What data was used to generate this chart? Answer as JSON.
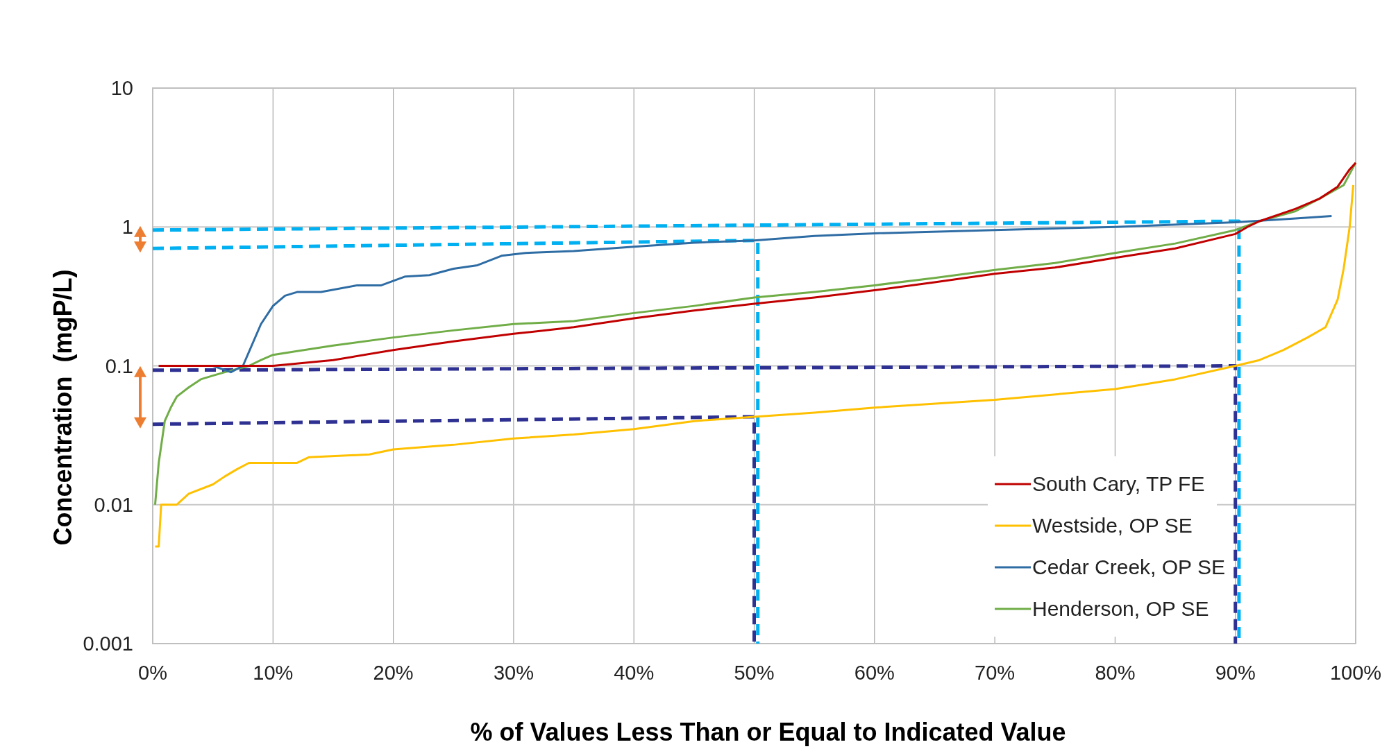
{
  "chart_data": {
    "type": "line",
    "xlabel": "% of Values Less Than or Equal to Indicated Value",
    "ylabel": "Concentration  (mgP/L)",
    "log": "y",
    "grid": true,
    "legend": "bottom right",
    "line_style": "solid",
    "marker": "none",
    "xlim": [
      0,
      100
    ],
    "xticks": [
      {
        "value": 0,
        "label": "0%"
      },
      {
        "value": 10,
        "label": "10%"
      },
      {
        "value": 20,
        "label": "20%"
      },
      {
        "value": 30,
        "label": "30%"
      },
      {
        "value": 40,
        "label": "40%"
      },
      {
        "value": 50,
        "label": "50%"
      },
      {
        "value": 60,
        "label": "60%"
      },
      {
        "value": 70,
        "label": "70%"
      },
      {
        "value": 80,
        "label": "80%"
      },
      {
        "value": 90,
        "label": "90%"
      },
      {
        "value": 100,
        "label": "100%"
      }
    ],
    "ylim": [
      0.001,
      10
    ],
    "yticks": [
      0.001,
      0.01,
      0.1,
      1,
      10
    ],
    "series": [
      {
        "name": "South Cary, TP FE",
        "color": "#c00000",
        "x": [
          0.5,
          5,
          10,
          15,
          20,
          25,
          30,
          35,
          40,
          45,
          50,
          55,
          60,
          65,
          70,
          75,
          80,
          85,
          90,
          91,
          92,
          95,
          97,
          98.5,
          99.5,
          100
        ],
        "values": [
          0.1,
          0.1,
          0.1,
          0.11,
          0.13,
          0.15,
          0.17,
          0.19,
          0.22,
          0.25,
          0.28,
          0.31,
          0.35,
          0.4,
          0.46,
          0.51,
          0.6,
          0.7,
          0.89,
          1,
          1.1,
          1.35,
          1.6,
          1.95,
          2.6,
          2.9
        ]
      },
      {
        "name": "Westside, OP SE",
        "color": "#ffc000",
        "x": [
          0.2,
          0.5,
          0.7,
          2,
          3,
          5,
          6,
          7,
          8,
          12,
          13,
          18,
          20,
          25,
          30,
          35,
          40,
          45,
          50,
          55,
          60,
          70,
          80,
          85,
          90,
          92,
          94,
          96,
          97.5,
          98.5,
          99,
          99.5,
          99.8
        ],
        "values": [
          0.005,
          0.005,
          0.01,
          0.01,
          0.012,
          0.014,
          0.016,
          0.018,
          0.02,
          0.02,
          0.022,
          0.023,
          0.025,
          0.027,
          0.03,
          0.032,
          0.035,
          0.04,
          0.043,
          0.046,
          0.05,
          0.057,
          0.068,
          0.08,
          0.1,
          0.11,
          0.13,
          0.16,
          0.19,
          0.3,
          0.5,
          1,
          2
        ]
      },
      {
        "name": "Cedar Creek, OP SE",
        "color": "#2e6ca4",
        "x": [
          0.5,
          5,
          6.5,
          7.5,
          9,
          10,
          11,
          12,
          14,
          17,
          19,
          21,
          23,
          25,
          27,
          29,
          31,
          35,
          40,
          45,
          50,
          55,
          60,
          70,
          80,
          90,
          95,
          98
        ],
        "values": [
          0.1,
          0.1,
          0.09,
          0.1,
          0.2,
          0.27,
          0.32,
          0.34,
          0.34,
          0.38,
          0.38,
          0.44,
          0.45,
          0.5,
          0.53,
          0.62,
          0.65,
          0.67,
          0.72,
          0.77,
          0.8,
          0.86,
          0.9,
          0.95,
          1,
          1.08,
          1.15,
          1.2
        ]
      },
      {
        "name": "Henderson, OP SE",
        "color": "#70ad47",
        "x": [
          0.2,
          0.5,
          1,
          1.5,
          2,
          3,
          4,
          5,
          6,
          8,
          9,
          10,
          15,
          20,
          25,
          30,
          35,
          40,
          45,
          50,
          55,
          60,
          65,
          70,
          75,
          80,
          85,
          90,
          92,
          95,
          97,
          99,
          100
        ],
        "values": [
          0.01,
          0.02,
          0.04,
          0.05,
          0.06,
          0.07,
          0.08,
          0.085,
          0.09,
          0.1,
          0.11,
          0.12,
          0.14,
          0.16,
          0.18,
          0.2,
          0.21,
          0.24,
          0.27,
          0.31,
          0.34,
          0.38,
          0.43,
          0.49,
          0.55,
          0.65,
          0.76,
          0.95,
          1.1,
          1.3,
          1.6,
          2,
          2.9
        ]
      },
      {
        "type": "line",
        "line_style": "dashed",
        "color": "#00b0f0",
        "x": [
          0,
          90.3,
          90.3
        ],
        "values": [
          0.95,
          1.1,
          0.001
        ]
      },
      {
        "type": "line",
        "line_style": "dashed",
        "color": "#00b0f0",
        "x": [
          0,
          50.3,
          50.3
        ],
        "values": [
          0.7,
          0.8,
          0.001
        ]
      },
      {
        "type": "line",
        "line_style": "dashed",
        "color": "#2e3192",
        "x": [
          0,
          90,
          90
        ],
        "values": [
          0.093,
          0.1,
          0.001
        ]
      },
      {
        "type": "line",
        "line_style": "dashed",
        "color": "#2e3192",
        "x": [
          0,
          50,
          50
        ],
        "values": [
          0.038,
          0.043,
          0.001
        ]
      }
    ]
  }
}
